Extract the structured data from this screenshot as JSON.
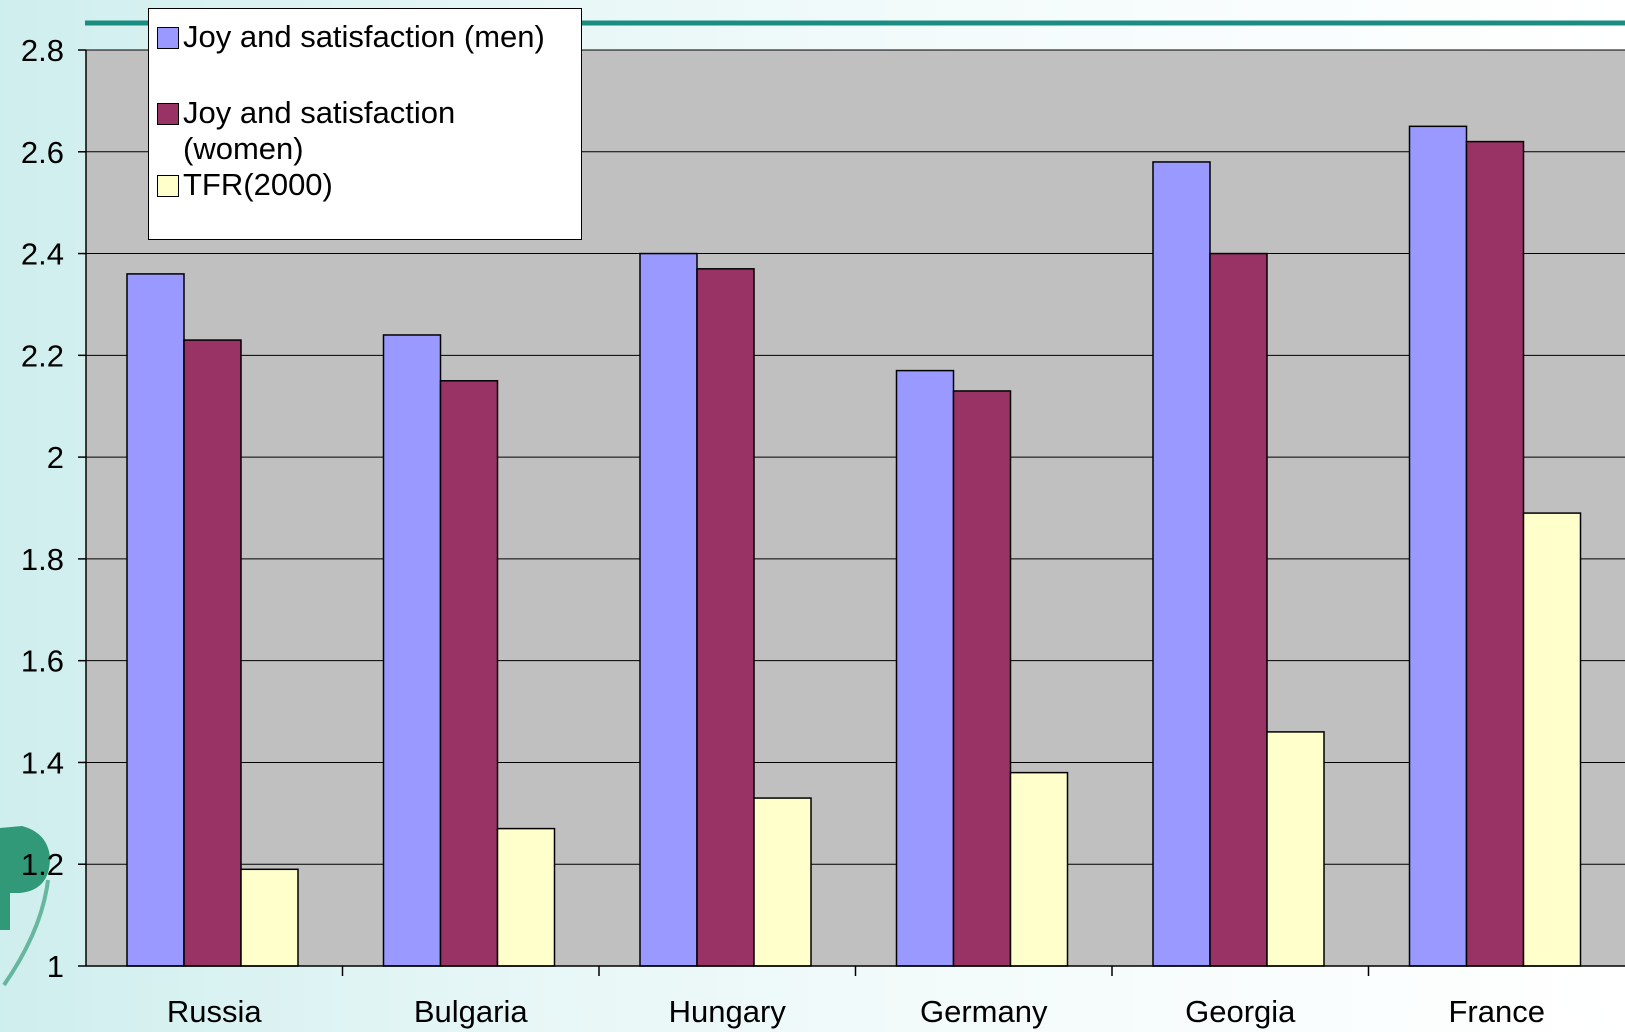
{
  "chart_data": {
    "type": "bar",
    "categories": [
      "Russia",
      "Bulgaria",
      "Hungary",
      "Germany",
      "Georgia",
      "France"
    ],
    "series": [
      {
        "name": "Joy and satisfaction (men)",
        "color": "#9999ff",
        "values": [
          2.36,
          2.24,
          2.4,
          2.17,
          2.58,
          2.65
        ]
      },
      {
        "name": "Joy and satisfaction (women)",
        "color": "#993366",
        "values": [
          2.23,
          2.15,
          2.37,
          2.13,
          2.4,
          2.62
        ]
      },
      {
        "name": "TFR(2000)",
        "color": "#ffffcc",
        "values": [
          1.19,
          1.27,
          1.33,
          1.38,
          1.46,
          1.89
        ]
      }
    ],
    "yticks": [
      "1",
      "1.2",
      "1.4",
      "1.6",
      "1.8",
      "2",
      "2.2",
      "2.4",
      "2.6",
      "2.8"
    ],
    "ylim": [
      1,
      2.8
    ],
    "grid": true,
    "plot_background": "#c0c0c0",
    "legend_position": "top-left"
  }
}
